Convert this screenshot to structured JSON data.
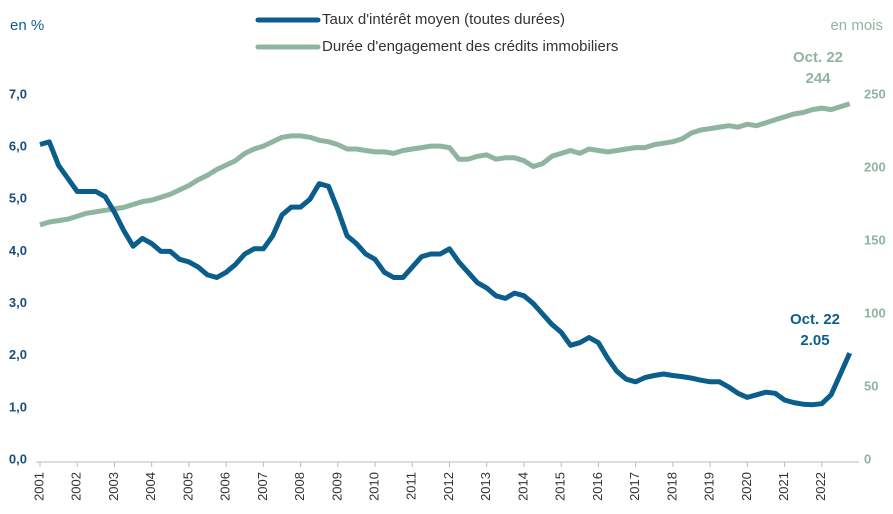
{
  "chart_data": {
    "type": "line",
    "y_label": "en %",
    "y2_label": "en mois",
    "x": [
      2001,
      2001.25,
      2001.5,
      2001.75,
      2002,
      2002.25,
      2002.5,
      2002.75,
      2003,
      2003.25,
      2003.5,
      2003.75,
      2004,
      2004.25,
      2004.5,
      2004.75,
      2005,
      2005.25,
      2005.5,
      2005.75,
      2006,
      2006.25,
      2006.5,
      2006.75,
      2007,
      2007.25,
      2007.5,
      2007.75,
      2008,
      2008.25,
      2008.5,
      2008.75,
      2009,
      2009.25,
      2009.5,
      2009.75,
      2010,
      2010.25,
      2010.5,
      2010.75,
      2011,
      2011.25,
      2011.5,
      2011.75,
      2012,
      2012.25,
      2012.5,
      2012.75,
      2013,
      2013.25,
      2013.5,
      2013.75,
      2014,
      2014.25,
      2014.5,
      2014.75,
      2015,
      2015.25,
      2015.5,
      2015.75,
      2016,
      2016.25,
      2016.5,
      2016.75,
      2017,
      2017.25,
      2017.5,
      2017.75,
      2018,
      2018.25,
      2018.5,
      2018.75,
      2019,
      2019.25,
      2019.5,
      2019.75,
      2020,
      2020.25,
      2020.5,
      2020.75,
      2021,
      2021.25,
      2021.5,
      2021.75,
      2022,
      2022.25,
      2022.5,
      2022.75
    ],
    "series": [
      {
        "name": "Taux d'intérêt moyen (toutes durées)",
        "color": "#0b5e8c",
        "axis": "y",
        "values": [
          6.05,
          6.1,
          5.65,
          5.4,
          5.15,
          5.15,
          5.15,
          5.05,
          4.75,
          4.4,
          4.1,
          4.25,
          4.15,
          4.0,
          4.0,
          3.85,
          3.8,
          3.7,
          3.55,
          3.5,
          3.6,
          3.75,
          3.95,
          4.05,
          4.05,
          4.3,
          4.7,
          4.85,
          4.85,
          5.0,
          5.3,
          5.25,
          4.8,
          4.3,
          4.15,
          3.95,
          3.85,
          3.6,
          3.5,
          3.5,
          3.7,
          3.9,
          3.95,
          3.95,
          4.05,
          3.8,
          3.6,
          3.4,
          3.3,
          3.15,
          3.1,
          3.2,
          3.15,
          3.0,
          2.8,
          2.6,
          2.45,
          2.2,
          2.25,
          2.35,
          2.25,
          1.95,
          1.7,
          1.55,
          1.5,
          1.58,
          1.62,
          1.65,
          1.62,
          1.6,
          1.57,
          1.53,
          1.5,
          1.5,
          1.4,
          1.28,
          1.2,
          1.25,
          1.3,
          1.28,
          1.15,
          1.1,
          1.07,
          1.06,
          1.08,
          1.25,
          1.65,
          2.05
        ]
      },
      {
        "name": "Durée d'engagement des crédits immobiliers",
        "color": "#8fb4a0",
        "axis": "y2",
        "values": [
          161,
          163,
          164,
          165,
          167,
          169,
          170,
          171,
          172,
          173,
          175,
          177,
          178,
          180,
          182,
          185,
          188,
          192,
          195,
          199,
          202,
          205,
          210,
          213,
          215,
          218,
          221,
          222,
          222,
          221,
          219,
          218,
          216,
          213,
          213,
          212,
          211,
          211,
          210,
          212,
          213,
          214,
          215,
          215,
          214,
          206,
          206,
          208,
          209,
          206,
          207,
          207,
          205,
          201,
          203,
          208,
          210,
          212,
          210,
          213,
          212,
          211,
          212,
          213,
          214,
          214,
          216,
          217,
          218,
          220,
          224,
          226,
          227,
          228,
          229,
          228,
          230,
          229,
          231,
          233,
          235,
          237,
          238,
          240,
          241,
          240,
          242,
          244
        ]
      }
    ],
    "annotations": [
      {
        "text": "Oct. 22",
        "value_label": "2.05"
      },
      {
        "text": "Oct. 22",
        "value_label": "244"
      }
    ],
    "xlim": [
      2001,
      2023
    ],
    "xticks": [
      2001,
      2002,
      2003,
      2004,
      2005,
      2006,
      2007,
      2008,
      2009,
      2010,
      2011,
      2012,
      2013,
      2014,
      2015,
      2016,
      2017,
      2018,
      2019,
      2020,
      2021,
      2022
    ],
    "ylim": [
      0,
      7
    ],
    "yticks": [
      {
        "value": 0,
        "label": "0,0"
      },
      {
        "value": 1,
        "label": "1,0"
      },
      {
        "value": 2,
        "label": "2,0"
      },
      {
        "value": 3,
        "label": "3,0"
      },
      {
        "value": 4,
        "label": "4,0"
      },
      {
        "value": 5,
        "label": "5,0"
      },
      {
        "value": 6,
        "label": "6,0"
      },
      {
        "value": 7,
        "label": "7,0"
      }
    ],
    "y2lim": [
      0,
      250
    ],
    "y2ticks": [
      0,
      50,
      100,
      150,
      200,
      250
    ],
    "grid": false
  }
}
